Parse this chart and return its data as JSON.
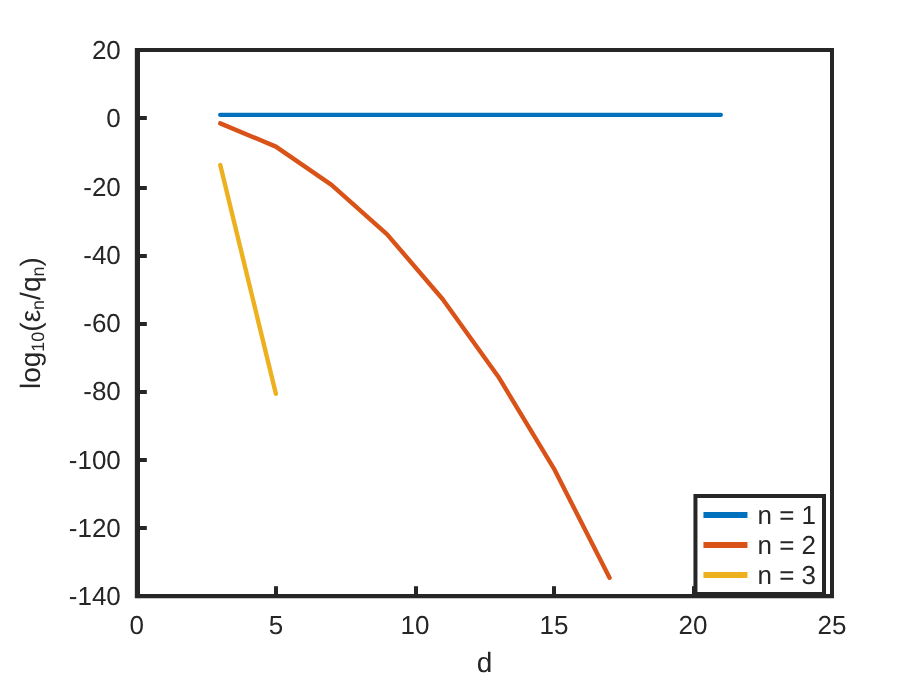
{
  "chart_data": {
    "type": "line",
    "xlabel": "d",
    "ylabel": "log$_{10}$(ε$_{n}$/q$_{n}$)",
    "xlim": [
      0,
      25
    ],
    "xticks": [
      0,
      5,
      10,
      15,
      20,
      25
    ],
    "ylim": [
      -140,
      20
    ],
    "yticks": [
      -140,
      -120,
      -100,
      -80,
      -60,
      -40,
      -20,
      0,
      20
    ],
    "series": [
      {
        "name": "n = 1",
        "color": "#0072bd",
        "x": [
          3,
          5,
          7,
          9,
          11,
          13,
          15,
          17,
          19,
          21
        ],
        "values": [
          1,
          1,
          1,
          1,
          1,
          1,
          1,
          1,
          1,
          1
        ]
      },
      {
        "name": "n = 2",
        "color": "#d95319",
        "x": [
          3,
          5,
          7,
          9,
          11,
          13,
          15,
          17
        ],
        "values": [
          -1.5,
          -8.3,
          -19.5,
          -34,
          -53,
          -75.7,
          -102.6,
          -134.6
        ]
      },
      {
        "name": "n = 3",
        "color": "#edb120",
        "x": [
          3,
          5
        ],
        "values": [
          -13.7,
          -80.7
        ]
      }
    ],
    "legend": "bottom right",
    "grid": false,
    "marker": "none",
    "line_style": "solid"
  }
}
